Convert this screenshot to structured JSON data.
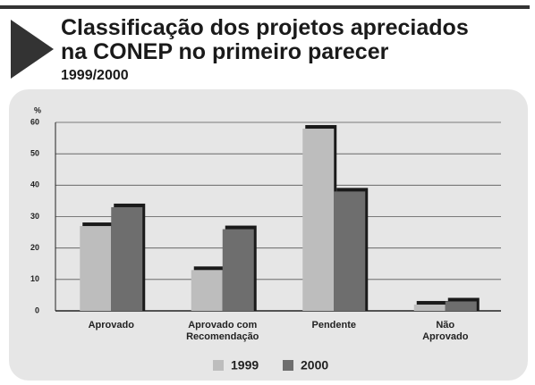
{
  "chart_data": {
    "type": "bar",
    "title": [
      "Classificação dos projetos apreciados",
      "na CONEP no primeiro parecer"
    ],
    "subtitle": "1999/2000",
    "y_label": "%",
    "categories": [
      "Aprovado",
      "Aprovado com Recomendação",
      "Pendente",
      "Não Aprovado"
    ],
    "series": [
      {
        "name": "1999",
        "color": "#bdbdbd",
        "values": [
          27,
          13,
          58,
          2
        ]
      },
      {
        "name": "2000",
        "color": "#6e6e6e",
        "values": [
          33,
          26,
          38,
          3
        ]
      }
    ],
    "ylim": [
      0,
      60
    ],
    "yticks": [
      0,
      10,
      20,
      30,
      40,
      50,
      60
    ],
    "grid": true,
    "legend": "bottom"
  }
}
